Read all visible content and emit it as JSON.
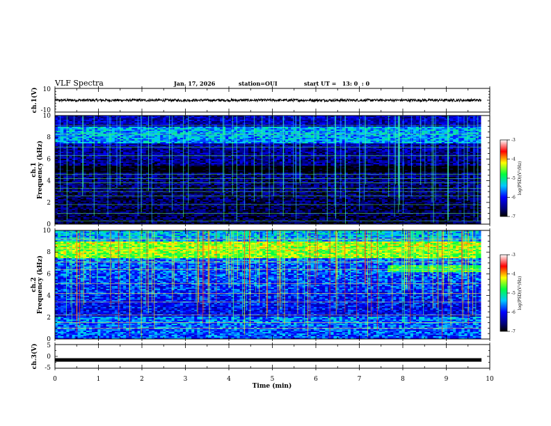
{
  "header": {
    "title": "VLF Spectra",
    "date": "Jan. 17, 2026",
    "station": "station=OUI",
    "start": "start UT =   13: 0  : 0"
  },
  "chart_data": [
    {
      "type": "line",
      "name": "ch1-waveform",
      "ylabel": "ch.1(V)",
      "ylim": [
        -10,
        10
      ],
      "ytick_labels": [
        "10",
        "-10"
      ],
      "baseline": 0,
      "xlim": [
        0,
        10
      ]
    },
    {
      "type": "heatmap",
      "name": "ch1-spectrogram",
      "ylabel": "Frequency (kHz)",
      "channel_label": "ch.1",
      "ylim": [
        0,
        10
      ],
      "ytick_labels": [
        "0",
        "2",
        "4",
        "6",
        "8",
        "10"
      ],
      "xlim": [
        0,
        9.8
      ],
      "colorbar": {
        "label": "log(PSD)(V²/Hz)",
        "range": [
          -7,
          -3
        ],
        "tick_labels": [
          "-3",
          "-4",
          "-5",
          "-6",
          "-7"
        ]
      }
    },
    {
      "type": "heatmap",
      "name": "ch2-spectrogram",
      "ylabel": "Frequency (kHz)",
      "channel_label": "ch.2",
      "ylim": [
        0,
        10
      ],
      "ytick_labels": [
        "0",
        "2",
        "4",
        "6",
        "8",
        "10"
      ],
      "xlim": [
        0,
        9.8
      ],
      "colorbar": {
        "label": "log(PSD)(V²/Hz)",
        "range": [
          -7,
          -3
        ],
        "tick_labels": [
          "-3",
          "-4",
          "-5",
          "-6",
          "-7"
        ]
      }
    },
    {
      "type": "line",
      "name": "ch3-waveform",
      "ylabel": "ch.3(V)",
      "ylim": [
        -5,
        5
      ],
      "ytick_labels": [
        "5",
        "0",
        "-5"
      ],
      "baseline": -1.5,
      "xlim": [
        0,
        10
      ]
    }
  ],
  "xaxis": {
    "label": "Time (min)",
    "xlim": [
      0,
      10
    ],
    "tick_labels": [
      "0",
      "1",
      "2",
      "3",
      "4",
      "5",
      "6",
      "7",
      "8",
      "9",
      "10"
    ]
  }
}
